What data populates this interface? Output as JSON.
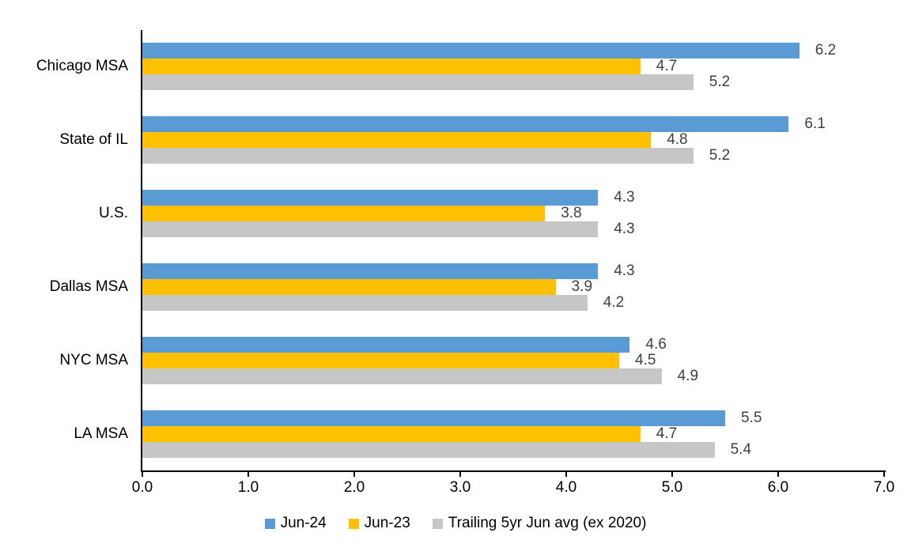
{
  "chart_data": {
    "type": "bar",
    "orientation": "horizontal",
    "title": "",
    "xlabel": "",
    "ylabel": "",
    "categories": [
      "Chicago MSA",
      "State of IL",
      "U.S.",
      "Dallas MSA",
      "NYC MSA",
      "LA MSA"
    ],
    "series": [
      {
        "name": "Jun-24",
        "color": "#5B9BD5",
        "values": [
          6.2,
          6.1,
          4.3,
          4.3,
          4.6,
          5.5
        ]
      },
      {
        "name": "Jun-23",
        "color": "#FFC000",
        "values": [
          4.7,
          4.8,
          3.8,
          3.9,
          4.5,
          4.7
        ]
      },
      {
        "name": "Trailing 5yr Jun avg (ex 2020)",
        "color": "#C6C6C6",
        "values": [
          5.2,
          5.2,
          4.3,
          4.2,
          4.9,
          5.4
        ]
      }
    ],
    "xlim": [
      0.0,
      7.0
    ],
    "x_ticks": [
      "0.0",
      "1.0",
      "2.0",
      "3.0",
      "4.0",
      "5.0",
      "6.0",
      "7.0"
    ],
    "grid": false,
    "legend_position": "bottom",
    "value_labels": true,
    "value_label_color": "#404040",
    "axis_color": "#000000"
  }
}
